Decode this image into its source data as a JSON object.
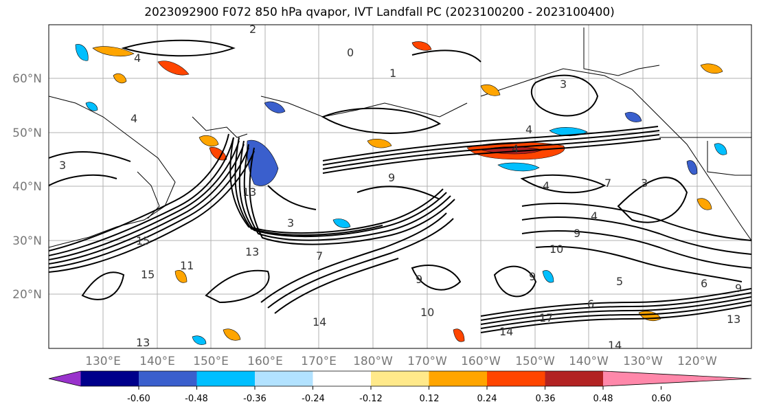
{
  "title": "2023092900 F072 850 hPa qvapor, IVT Landfall PC (2023100200 - 2023100400)",
  "lat_labels": [
    "60°N",
    "50°N",
    "40°N",
    "30°N",
    "20°N"
  ],
  "lon_labels": [
    "130°E",
    "140°E",
    "150°E",
    "160°E",
    "170°E",
    "180°W",
    "170°W",
    "160°W",
    "150°W",
    "140°W",
    "130°W",
    "120°W"
  ],
  "contour_labels": [
    "2",
    "0",
    "1",
    "3",
    "4",
    "4",
    "3",
    "4",
    "13",
    "3",
    "13",
    "9",
    "7",
    "7",
    "4",
    "9",
    "10",
    "9",
    "15",
    "11",
    "15",
    "9",
    "10",
    "14",
    "14",
    "17",
    "13",
    "14",
    "13",
    "9",
    "5",
    "6",
    "6",
    "3",
    "4",
    "4"
  ],
  "colorbar": {
    "colors": [
      "#9932CC",
      "#00008B",
      "#3A5FCD",
      "#00BFFF",
      "#B2E2FF",
      "#FFFFFF",
      "#FFE98A",
      "#FFA500",
      "#FF4500",
      "#B22222",
      "#FF88AA"
    ],
    "tick_labels": [
      "-0.60",
      "-0.48",
      "-0.36",
      "-0.24",
      "-0.12",
      "0.12",
      "0.24",
      "0.36",
      "0.48",
      "0.60"
    ]
  }
}
